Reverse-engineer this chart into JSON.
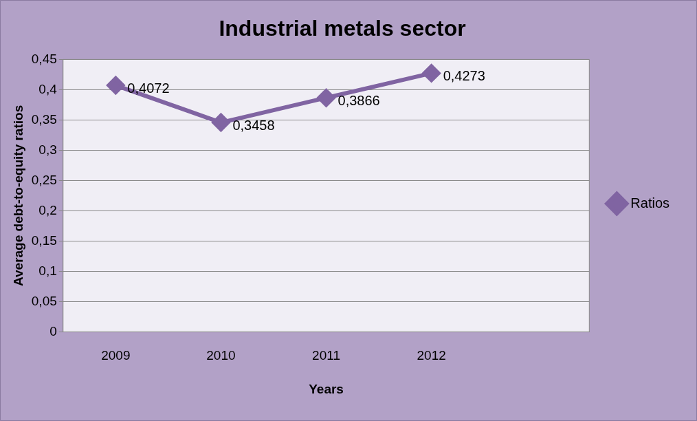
{
  "chart_data": {
    "type": "line",
    "title": "Industrial metals sector",
    "xlabel": "Years",
    "ylabel": "Average debt-to-equity ratios",
    "categories": [
      "2009",
      "2010",
      "2011",
      "2012",
      null
    ],
    "series": [
      {
        "name": "Ratios",
        "color": "#8064a2",
        "values": [
          0.4072,
          0.3458,
          0.3866,
          0.4273,
          null
        ],
        "value_labels": [
          "0,4072",
          "0,3458",
          "0,3866",
          "0,4273",
          null
        ]
      }
    ],
    "ylim": [
      0,
      0.45
    ],
    "yticks": [
      0,
      {
        "value": 0.05,
        "label": "0,05"
      },
      {
        "value": 0.1,
        "label": "0,1"
      },
      {
        "value": 0.15,
        "label": "0,15"
      },
      {
        "value": 0.2,
        "label": "0,2"
      },
      {
        "value": 0.25,
        "label": "0,25"
      },
      {
        "value": 0.3,
        "label": "0,3"
      },
      {
        "value": 0.35,
        "label": "0,35"
      },
      {
        "value": 0.4,
        "label": "0,4"
      },
      {
        "value": 0.45,
        "label": "0,45"
      }
    ],
    "grid": "y",
    "legend": "right",
    "marker": "diamond",
    "line_style": "solid"
  }
}
